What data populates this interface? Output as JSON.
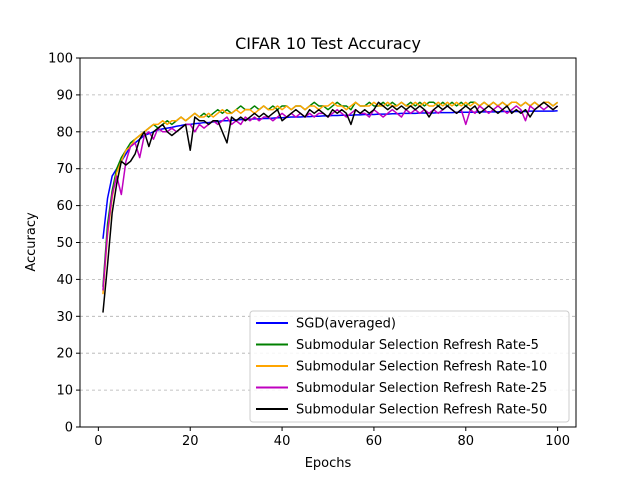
{
  "chart_data": {
    "type": "line",
    "title": "CIFAR 10 Test Accuracy",
    "xlabel": "Epochs",
    "ylabel": "Accuracy",
    "xlim": [
      -4,
      104
    ],
    "ylim": [
      0,
      100
    ],
    "xticks": [
      0,
      20,
      40,
      60,
      80,
      100
    ],
    "yticks": [
      0,
      10,
      20,
      30,
      40,
      50,
      60,
      70,
      80,
      90,
      100
    ],
    "grid": "horizontal-dashed",
    "legend_position": "lower-right",
    "series": [
      {
        "name": "SGD(averaged)",
        "color": "#0000ff",
        "values": [
          51,
          62,
          68,
          70,
          72,
          74,
          76,
          77,
          78,
          79,
          79.5,
          80,
          80.5,
          80.8,
          81,
          81.2,
          81.5,
          81.7,
          82,
          82,
          82.2,
          82.3,
          82.5,
          82.5,
          82.7,
          82.8,
          83,
          83,
          83.1,
          83.2,
          83.3,
          83.3,
          83.4,
          83.5,
          83.5,
          83.6,
          83.6,
          83.7,
          83.8,
          83.8,
          83.9,
          84,
          84,
          84,
          84.1,
          84.1,
          84.2,
          84.2,
          84.3,
          84.3,
          84.4,
          84.4,
          84.5,
          84.5,
          84.5,
          84.6,
          84.6,
          84.7,
          84.7,
          84.7,
          84.8,
          84.8,
          84.8,
          84.9,
          84.9,
          85,
          85,
          85,
          85,
          85.1,
          85.1,
          85.1,
          85.1,
          85.2,
          85.2,
          85.2,
          85.2,
          85.3,
          85.3,
          85.3,
          85.3,
          85.3,
          85.4,
          85.4,
          85.4,
          85.4,
          85.4,
          85.5,
          85.5,
          85.5,
          85.5,
          85.5,
          85.5,
          85.6,
          85.6,
          85.6,
          85.6,
          85.6,
          85.6,
          85.7
        ]
      },
      {
        "name": "Submodular Selection Refresh Rate-5",
        "color": "#008000",
        "values": [
          38,
          55,
          64,
          70,
          73,
          75,
          77,
          78,
          79,
          80,
          81,
          82,
          81,
          82,
          83,
          82,
          83,
          84,
          83,
          84,
          85,
          84,
          85,
          84,
          85,
          86,
          85,
          86,
          85,
          86,
          87,
          86,
          86,
          87,
          86,
          87,
          86,
          87,
          86,
          87,
          87,
          86,
          87,
          87,
          86,
          87,
          88,
          87,
          87,
          86,
          87,
          88,
          87,
          87,
          86,
          88,
          87,
          87,
          88,
          87,
          87,
          88,
          87,
          88,
          87,
          88,
          87,
          88,
          87,
          88,
          87,
          88,
          88,
          87,
          88,
          87,
          88,
          87,
          88,
          87,
          88,
          88,
          87,
          88,
          87,
          88,
          87,
          88,
          87,
          88,
          88,
          87,
          88,
          87,
          88,
          87,
          88,
          88,
          87,
          88
        ]
      },
      {
        "name": "Submodular Selection Refresh Rate-10",
        "color": "#ffa500",
        "values": [
          36,
          52,
          62,
          69,
          72,
          75,
          76,
          78,
          79,
          80,
          81,
          82,
          82,
          83,
          82,
          83,
          83,
          84,
          83,
          84,
          85,
          84,
          84,
          85,
          84,
          85,
          86,
          85,
          85,
          86,
          85,
          86,
          86,
          85,
          86,
          87,
          86,
          86,
          87,
          86,
          87,
          86,
          87,
          87,
          86,
          87,
          87,
          86,
          87,
          87,
          88,
          87,
          87,
          86,
          87,
          88,
          87,
          87,
          87,
          88,
          87,
          87,
          88,
          87,
          87,
          88,
          87,
          87,
          88,
          87,
          88,
          87,
          87,
          88,
          87,
          88,
          87,
          88,
          87,
          88,
          87,
          88,
          87,
          88,
          87,
          88,
          87,
          88,
          87,
          88,
          88,
          87,
          88,
          87,
          88,
          87,
          88,
          88,
          87,
          88
        ]
      },
      {
        "name": "Submodular Selection Refresh Rate-25",
        "color": "#bf00bf",
        "values": [
          37,
          53,
          63,
          68,
          63,
          72,
          76,
          77,
          73,
          79,
          80,
          78,
          81,
          80,
          80,
          81,
          80,
          81,
          82,
          82,
          80,
          82,
          81,
          82,
          83,
          82,
          83,
          84,
          82,
          83,
          82,
          84,
          83,
          84,
          83,
          84,
          84,
          83,
          84,
          85,
          84,
          85,
          84,
          85,
          84,
          85,
          84,
          85,
          85,
          84,
          85,
          86,
          85,
          84,
          85,
          86,
          85,
          85,
          84,
          86,
          85,
          84,
          85,
          86,
          85,
          84,
          86,
          85,
          86,
          85,
          86,
          85,
          86,
          85,
          86,
          87,
          86,
          85,
          86,
          82,
          86,
          85,
          87,
          86,
          85,
          86,
          87,
          86,
          85,
          86,
          87,
          86,
          83,
          87,
          86,
          87,
          86,
          87,
          86,
          87
        ]
      },
      {
        "name": "Submodular Selection Refresh Rate-50",
        "color": "#000000",
        "values": [
          31,
          44,
          58,
          66,
          72,
          71,
          72,
          74,
          78,
          80,
          76,
          80,
          81,
          82,
          80,
          79,
          80,
          81,
          82,
          75,
          84,
          83,
          83,
          82,
          83,
          83,
          80,
          77,
          84,
          83,
          84,
          83,
          84,
          85,
          84,
          85,
          84,
          85,
          86,
          83,
          84,
          85,
          86,
          85,
          84,
          86,
          85,
          86,
          85,
          84,
          86,
          85,
          86,
          85,
          82,
          86,
          85,
          86,
          85,
          86,
          88,
          87,
          86,
          87,
          86,
          87,
          86,
          87,
          86,
          87,
          86,
          84,
          86,
          87,
          86,
          87,
          86,
          85,
          86,
          87,
          86,
          87,
          85,
          86,
          87,
          86,
          85,
          86,
          87,
          85,
          86,
          85,
          86,
          84,
          86,
          87,
          88,
          87,
          86,
          87
        ]
      }
    ]
  }
}
